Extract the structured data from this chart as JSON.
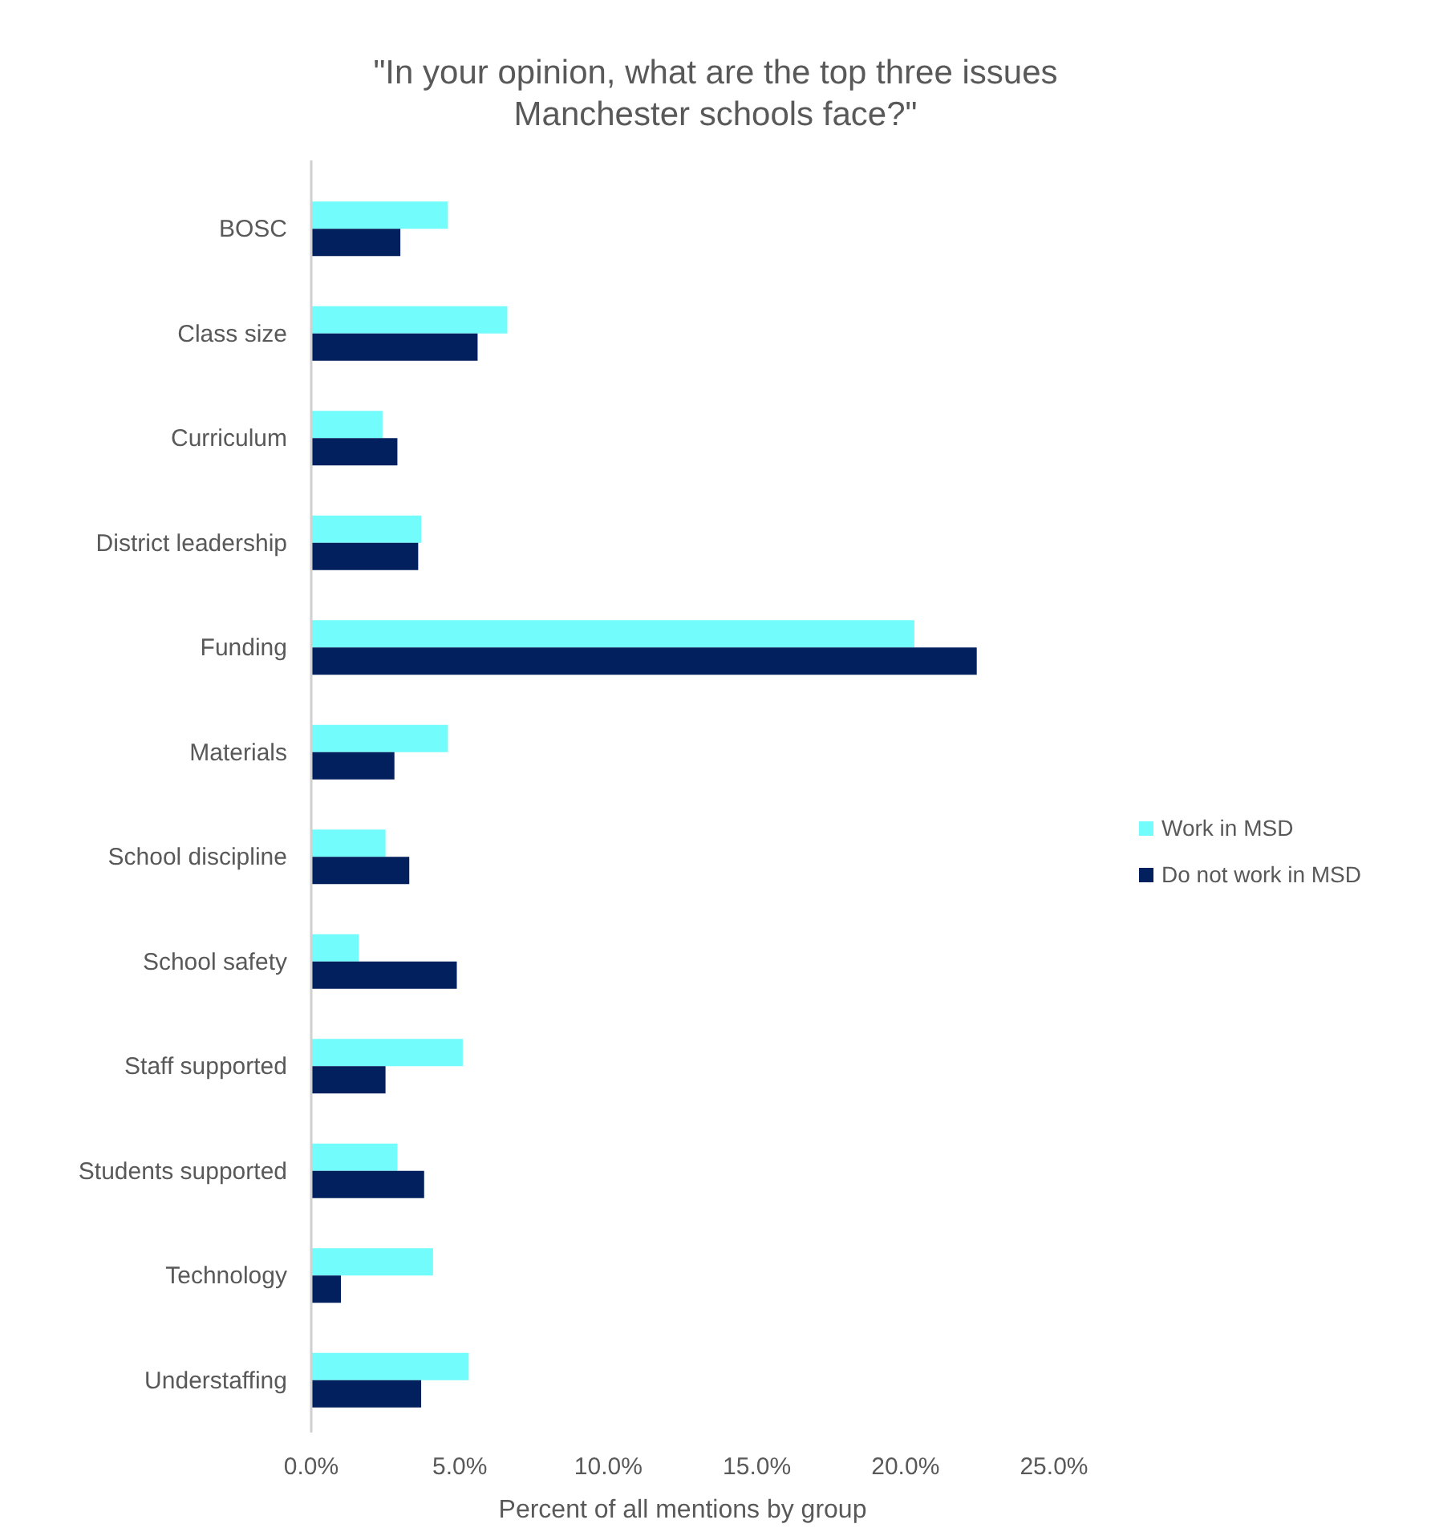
{
  "chart_data": {
    "type": "bar",
    "orientation": "horizontal",
    "title": "\"In your opinion, what are the top three issues Manchester schools face?\"",
    "xlabel": "Percent of all mentions by group",
    "categories": [
      "BOSC",
      "Class size",
      "Curriculum",
      "District leadership",
      "Funding",
      "Materials",
      "School discipline",
      "School safety",
      "Staff supported",
      "Students supported",
      "Technology",
      "Understaffing"
    ],
    "series": [
      {
        "name": "Work in MSD",
        "color": "#72fcfc",
        "values": [
          4.6,
          6.6,
          2.4,
          3.7,
          20.3,
          4.6,
          2.5,
          1.6,
          5.1,
          2.9,
          4.1,
          5.3
        ]
      },
      {
        "name": "Do not work in MSD",
        "color": "#02205e",
        "values": [
          3.0,
          5.6,
          2.9,
          3.6,
          22.4,
          2.8,
          3.3,
          4.9,
          2.5,
          3.8,
          1.0,
          3.7
        ]
      }
    ],
    "xlim": [
      0,
      25
    ],
    "xticks": [
      {
        "value": 0,
        "label": "0.0%"
      },
      {
        "value": 5,
        "label": "5.0%"
      },
      {
        "value": 10,
        "label": "10.0%"
      },
      {
        "value": 15,
        "label": "15.0%"
      },
      {
        "value": 20,
        "label": "20.0%"
      },
      {
        "value": 25,
        "label": "25.0%"
      }
    ],
    "grid": false,
    "legend": "right"
  }
}
